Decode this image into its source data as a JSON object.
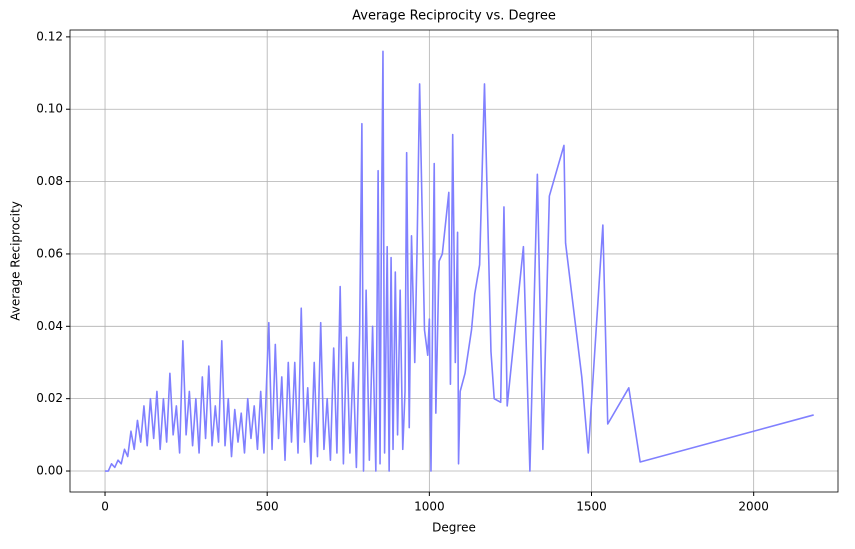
{
  "chart_data": {
    "type": "line",
    "title": "Average Reciprocity vs. Degree",
    "x_label": "Degree",
    "y_label": "Average Reciprocity",
    "series": [
      {
        "color": "#8080ff",
        "x": [
          0,
          10,
          20,
          30,
          40,
          50,
          60,
          70,
          80,
          90,
          100,
          110,
          120,
          130,
          140,
          150,
          160,
          170,
          180,
          190,
          200,
          210,
          220,
          230,
          240,
          250,
          260,
          270,
          280,
          290,
          300,
          310,
          320,
          330,
          340,
          350,
          360,
          370,
          380,
          390,
          400,
          410,
          420,
          430,
          440,
          450,
          460,
          470,
          480,
          490,
          505,
          515,
          525,
          535,
          545,
          555,
          565,
          575,
          585,
          595,
          605,
          615,
          625,
          635,
          645,
          655,
          665,
          675,
          685,
          695,
          705,
          715,
          725,
          735,
          745,
          755,
          765,
          775,
          785,
          792,
          797,
          805,
          815,
          825,
          835,
          842,
          848,
          852,
          857,
          862,
          870,
          876,
          882,
          888,
          895,
          902,
          910,
          918,
          925,
          930,
          938,
          945,
          955,
          962,
          970,
          985,
          995,
          1000,
          1005,
          1015,
          1020,
          1030,
          1040,
          1060,
          1065,
          1072,
          1080,
          1087,
          1090,
          1095,
          1110,
          1130,
          1140,
          1155,
          1170,
          1190,
          1200,
          1220,
          1230,
          1240,
          1290,
          1310,
          1333,
          1350,
          1370,
          1415,
          1420,
          1470,
          1490,
          1535,
          1550,
          1615,
          1650,
          2185
        ],
        "values": [
          0,
          0,
          0.002,
          0.001,
          0.003,
          0.002,
          0.006,
          0.004,
          0.011,
          0.006,
          0.014,
          0.008,
          0.018,
          0.007,
          0.02,
          0.009,
          0.022,
          0.006,
          0.02,
          0.008,
          0.027,
          0.01,
          0.018,
          0.005,
          0.036,
          0.01,
          0.022,
          0.007,
          0.02,
          0.005,
          0.026,
          0.009,
          0.029,
          0.007,
          0.018,
          0.008,
          0.036,
          0.007,
          0.02,
          0.004,
          0.017,
          0.008,
          0.016,
          0.005,
          0.02,
          0.009,
          0.018,
          0.006,
          0.022,
          0.005,
          0.041,
          0.006,
          0.035,
          0.009,
          0.026,
          0.003,
          0.03,
          0.008,
          0.03,
          0.005,
          0.045,
          0.008,
          0.023,
          0.002,
          0.03,
          0.004,
          0.041,
          0.006,
          0.02,
          0.003,
          0.034,
          0.005,
          0.051,
          0.002,
          0.037,
          0.005,
          0.03,
          0.001,
          0.038,
          0.096,
          0,
          0.05,
          0.003,
          0.04,
          0,
          0.083,
          0.002,
          0.064,
          0.116,
          0.005,
          0.062,
          0,
          0.059,
          0.006,
          0.055,
          0.01,
          0.05,
          0.006,
          0.022,
          0.088,
          0.012,
          0.065,
          0.03,
          0.061,
          0.107,
          0.039,
          0.032,
          0.042,
          0,
          0.085,
          0.016,
          0.058,
          0.06,
          0.077,
          0.024,
          0.093,
          0.03,
          0.066,
          0.002,
          0.022,
          0.027,
          0.039,
          0.049,
          0.057,
          0.107,
          0.033,
          0.02,
          0.019,
          0.073,
          0.018,
          0.062,
          0,
          0.082,
          0.006,
          0.076,
          0.09,
          0.063,
          0.026,
          0.005,
          0.068,
          0.013,
          0.023,
          0.0025,
          0.0155
        ]
      }
    ],
    "xlim": [
      -108,
      2260
    ],
    "ylim": [
      -0.0058,
      0.1219
    ],
    "xticks": [
      0,
      500,
      1000,
      1500,
      2000
    ],
    "yticks": [
      {
        "value": 0,
        "label": "0.00"
      },
      {
        "value": 0.02,
        "label": "0.02"
      },
      {
        "value": 0.04,
        "label": "0.04"
      },
      {
        "value": 0.06,
        "label": "0.06"
      },
      {
        "value": 0.08,
        "label": "0.08"
      },
      {
        "value": 0.1,
        "label": "0.10"
      },
      {
        "value": 0.12,
        "label": "0.12"
      }
    ],
    "grid": true
  }
}
